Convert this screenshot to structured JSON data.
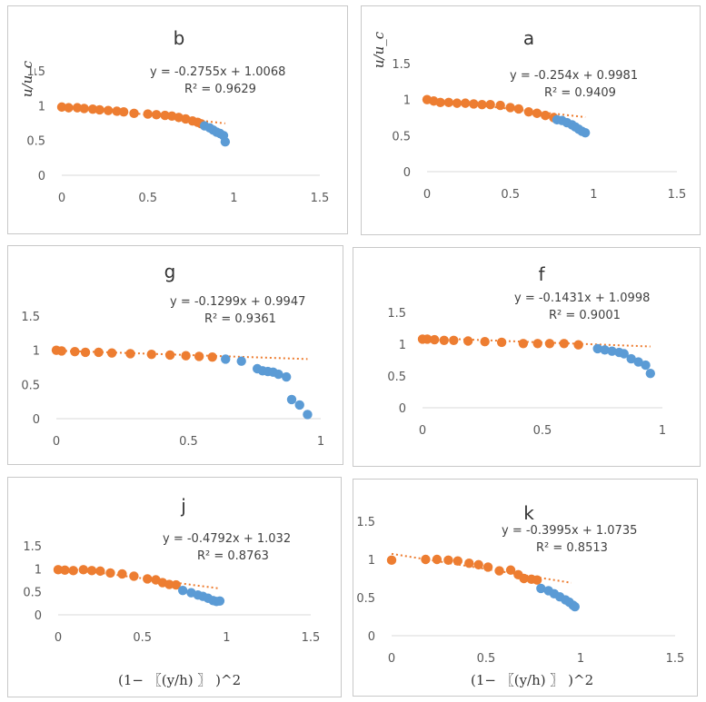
{
  "colors": {
    "fit_points": "#ED7D31",
    "other_points": "#5B9BD5",
    "trend": "#ED7D31",
    "axis": "#d9d9d9"
  },
  "xlabel": "(1− 〖(y/h) 〗 )^2",
  "ylabel": "u/u_c",
  "chart_data": [
    {
      "type": "scatter",
      "title": "b",
      "xlim": [
        0,
        1.5
      ],
      "ylim": [
        0,
        1.5
      ],
      "xticks": [
        "0",
        "0.5",
        "1",
        "1.5"
      ],
      "yticks": [
        "0",
        "0.5",
        "1",
        "1.5"
      ],
      "show_ylabel": true,
      "trendline": {
        "slope": -0.2755,
        "intercept": 1.0068,
        "x_range": [
          0,
          0.95
        ]
      },
      "equation": "y = -0.2755x + 1.0068",
      "r2": "R² = 0.9629",
      "series": [
        {
          "role": "fit",
          "points": [
            [
              0,
              0.98
            ],
            [
              0.04,
              0.97
            ],
            [
              0.09,
              0.97
            ],
            [
              0.13,
              0.96
            ],
            [
              0.18,
              0.95
            ],
            [
              0.22,
              0.94
            ],
            [
              0.27,
              0.93
            ],
            [
              0.32,
              0.92
            ],
            [
              0.36,
              0.91
            ],
            [
              0.42,
              0.89
            ],
            [
              0.5,
              0.88
            ],
            [
              0.55,
              0.87
            ],
            [
              0.6,
              0.86
            ],
            [
              0.64,
              0.85
            ],
            [
              0.68,
              0.83
            ],
            [
              0.72,
              0.81
            ],
            [
              0.76,
              0.78
            ],
            [
              0.79,
              0.76
            ],
            [
              0.81,
              0.74
            ]
          ]
        },
        {
          "role": "other",
          "points": [
            [
              0.83,
              0.71
            ],
            [
              0.86,
              0.68
            ],
            [
              0.88,
              0.65
            ],
            [
              0.9,
              0.62
            ],
            [
              0.92,
              0.6
            ],
            [
              0.94,
              0.57
            ],
            [
              0.95,
              0.48
            ]
          ]
        }
      ]
    },
    {
      "type": "scatter",
      "title": "a",
      "xlim": [
        0,
        1.5
      ],
      "ylim": [
        0,
        1.5
      ],
      "xticks": [
        "0",
        "0.5",
        "1",
        "1.5"
      ],
      "yticks": [
        "0",
        "0.5",
        "1",
        "1.5"
      ],
      "show_ylabel": true,
      "trendline": {
        "slope": -0.254,
        "intercept": 0.9981,
        "x_range": [
          0,
          0.95
        ]
      },
      "equation": "y = -0.254x + 0.9981",
      "r2": "R² = 0.9409",
      "series": [
        {
          "role": "fit",
          "points": [
            [
              0,
              1.0
            ],
            [
              0.04,
              0.98
            ],
            [
              0.08,
              0.96
            ],
            [
              0.13,
              0.96
            ],
            [
              0.18,
              0.95
            ],
            [
              0.23,
              0.95
            ],
            [
              0.28,
              0.94
            ],
            [
              0.33,
              0.93
            ],
            [
              0.38,
              0.93
            ],
            [
              0.44,
              0.92
            ],
            [
              0.5,
              0.89
            ],
            [
              0.55,
              0.87
            ],
            [
              0.61,
              0.83
            ],
            [
              0.66,
              0.81
            ],
            [
              0.71,
              0.78
            ],
            [
              0.76,
              0.75
            ]
          ]
        },
        {
          "role": "other",
          "points": [
            [
              0.78,
              0.72
            ],
            [
              0.81,
              0.71
            ],
            [
              0.84,
              0.68
            ],
            [
              0.87,
              0.65
            ],
            [
              0.89,
              0.62
            ],
            [
              0.91,
              0.59
            ],
            [
              0.93,
              0.56
            ],
            [
              0.95,
              0.54
            ]
          ]
        }
      ]
    },
    {
      "type": "scatter",
      "title": "g",
      "xlim": [
        0,
        1
      ],
      "ylim": [
        0,
        1.5
      ],
      "xticks": [
        "0",
        "0.5",
        "1"
      ],
      "yticks": [
        "0",
        "0.5",
        "1",
        "1.5"
      ],
      "show_ylabel": false,
      "trendline": {
        "slope": -0.1299,
        "intercept": 0.9947,
        "x_range": [
          0,
          0.95
        ]
      },
      "equation": "y = -0.1299x + 0.9947",
      "r2": "R² = 0.9361",
      "series": [
        {
          "role": "fit",
          "points": [
            [
              0,
              1.0
            ],
            [
              0.02,
              0.99
            ],
            [
              0.07,
              0.98
            ],
            [
              0.11,
              0.97
            ],
            [
              0.16,
              0.97
            ],
            [
              0.21,
              0.96
            ],
            [
              0.28,
              0.95
            ],
            [
              0.36,
              0.94
            ],
            [
              0.43,
              0.93
            ],
            [
              0.49,
              0.92
            ],
            [
              0.54,
              0.91
            ],
            [
              0.59,
              0.9
            ]
          ]
        },
        {
          "role": "other",
          "points": [
            [
              0.64,
              0.87
            ],
            [
              0.7,
              0.84
            ],
            [
              0.76,
              0.73
            ],
            [
              0.78,
              0.7
            ],
            [
              0.8,
              0.69
            ],
            [
              0.82,
              0.68
            ],
            [
              0.84,
              0.65
            ],
            [
              0.87,
              0.61
            ],
            [
              0.89,
              0.28
            ],
            [
              0.92,
              0.2
            ],
            [
              0.95,
              0.06
            ]
          ]
        }
      ]
    },
    {
      "type": "scatter",
      "title": "f",
      "xlim": [
        0,
        1
      ],
      "ylim": [
        0,
        1.5
      ],
      "xticks": [
        "0",
        "0.5",
        "1"
      ],
      "yticks": [
        "0",
        "0.5",
        "1",
        "1.5"
      ],
      "show_ylabel": false,
      "trendline": {
        "slope": -0.1431,
        "intercept": 1.0998,
        "x_range": [
          0,
          0.95
        ]
      },
      "equation": "y = -0.1431x + 1.0998",
      "r2": "R² = 0.9001",
      "series": [
        {
          "role": "fit",
          "points": [
            [
              0,
              1.08
            ],
            [
              0.02,
              1.08
            ],
            [
              0.05,
              1.07
            ],
            [
              0.09,
              1.06
            ],
            [
              0.13,
              1.06
            ],
            [
              0.19,
              1.05
            ],
            [
              0.26,
              1.04
            ],
            [
              0.33,
              1.03
            ],
            [
              0.42,
              1.01
            ],
            [
              0.48,
              1.01
            ],
            [
              0.53,
              1.01
            ],
            [
              0.59,
              1.01
            ],
            [
              0.65,
              0.99
            ]
          ]
        },
        {
          "role": "other",
          "points": [
            [
              0.73,
              0.93
            ],
            [
              0.76,
              0.91
            ],
            [
              0.79,
              0.89
            ],
            [
              0.82,
              0.87
            ],
            [
              0.84,
              0.85
            ],
            [
              0.87,
              0.77
            ],
            [
              0.9,
              0.72
            ],
            [
              0.93,
              0.67
            ],
            [
              0.95,
              0.54
            ]
          ]
        }
      ]
    },
    {
      "type": "scatter",
      "title": "j",
      "xlim": [
        0,
        1.5
      ],
      "ylim": [
        0,
        1.5
      ],
      "xticks": [
        "0",
        "0.5",
        "1",
        "1.5"
      ],
      "yticks": [
        "0",
        "0.5",
        "1",
        "1.5"
      ],
      "show_ylabel": false,
      "trendline": {
        "slope": -0.4792,
        "intercept": 1.032,
        "x_range": [
          0,
          0.95
        ]
      },
      "equation": "y = -0.4792x + 1.032",
      "r2": "R² = 0.8763",
      "series": [
        {
          "role": "fit",
          "points": [
            [
              0,
              0.98
            ],
            [
              0.04,
              0.97
            ],
            [
              0.09,
              0.96
            ],
            [
              0.15,
              0.98
            ],
            [
              0.2,
              0.96
            ],
            [
              0.25,
              0.95
            ],
            [
              0.31,
              0.91
            ],
            [
              0.38,
              0.89
            ],
            [
              0.45,
              0.84
            ],
            [
              0.53,
              0.78
            ],
            [
              0.58,
              0.76
            ],
            [
              0.62,
              0.7
            ],
            [
              0.66,
              0.66
            ],
            [
              0.7,
              0.65
            ]
          ]
        },
        {
          "role": "other",
          "points": [
            [
              0.74,
              0.53
            ],
            [
              0.79,
              0.48
            ],
            [
              0.83,
              0.43
            ],
            [
              0.86,
              0.4
            ],
            [
              0.89,
              0.36
            ],
            [
              0.92,
              0.31
            ],
            [
              0.94,
              0.29
            ],
            [
              0.96,
              0.3
            ]
          ]
        }
      ]
    },
    {
      "type": "scatter",
      "title": "k",
      "xlim": [
        0,
        1.5
      ],
      "ylim": [
        0,
        1.5
      ],
      "xticks": [
        "0",
        "0.5",
        "1",
        "1.5"
      ],
      "yticks": [
        "0",
        "0.5",
        "1",
        "1.5"
      ],
      "show_ylabel": false,
      "trendline": {
        "slope": -0.3995,
        "intercept": 1.0735,
        "x_range": [
          0,
          0.95
        ]
      },
      "equation": "y = -0.3995x + 1.0735",
      "r2": "R² = 0.8513",
      "series": [
        {
          "role": "fit",
          "points": [
            [
              0,
              0.99
            ],
            [
              0.18,
              1.0
            ],
            [
              0.24,
              1.0
            ],
            [
              0.3,
              0.99
            ],
            [
              0.35,
              0.98
            ],
            [
              0.41,
              0.95
            ],
            [
              0.46,
              0.93
            ],
            [
              0.51,
              0.9
            ],
            [
              0.57,
              0.85
            ],
            [
              0.63,
              0.86
            ],
            [
              0.67,
              0.8
            ],
            [
              0.7,
              0.75
            ],
            [
              0.74,
              0.74
            ],
            [
              0.77,
              0.73
            ]
          ]
        },
        {
          "role": "other",
          "points": [
            [
              0.79,
              0.62
            ],
            [
              0.83,
              0.59
            ],
            [
              0.86,
              0.55
            ],
            [
              0.89,
              0.51
            ],
            [
              0.92,
              0.47
            ],
            [
              0.94,
              0.44
            ],
            [
              0.96,
              0.4
            ],
            [
              0.97,
              0.38
            ]
          ]
        }
      ]
    }
  ]
}
